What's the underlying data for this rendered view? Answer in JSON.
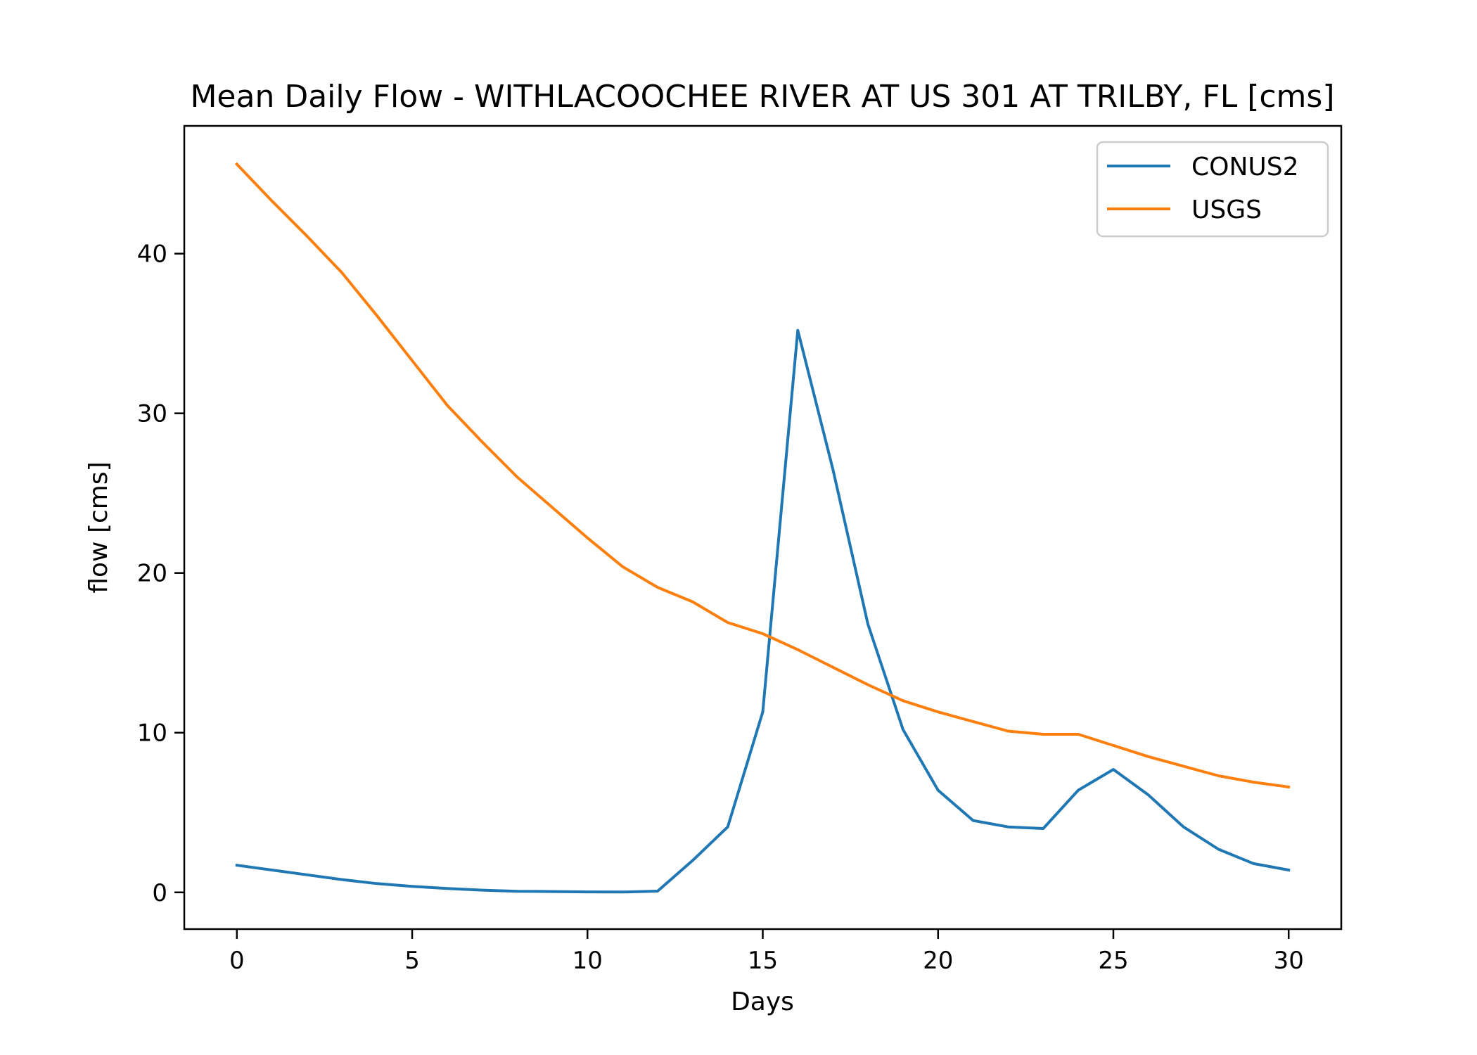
{
  "chart_data": {
    "type": "line",
    "title": "Mean Daily Flow - WITHLACOOCHEE RIVER AT US 301 AT TRILBY, FL [cms]",
    "xlabel": "Days",
    "ylabel": "flow [cms]",
    "xlim": [
      -1.5,
      31.5
    ],
    "ylim": [
      -2.3,
      48.0
    ],
    "xticks": [
      0,
      5,
      10,
      15,
      20,
      25,
      30
    ],
    "xtick_labels": [
      "0",
      "5",
      "10",
      "15",
      "20",
      "25",
      "30"
    ],
    "yticks": [
      0,
      10,
      20,
      30,
      40
    ],
    "ytick_labels": [
      "0",
      "10",
      "20",
      "30",
      "40"
    ],
    "grid": false,
    "legend_position": "top-right",
    "x": [
      0,
      1,
      2,
      3,
      4,
      5,
      6,
      7,
      8,
      9,
      10,
      11,
      12,
      13,
      14,
      15,
      16,
      17,
      18,
      19,
      20,
      21,
      22,
      23,
      24,
      25,
      26,
      27,
      28,
      29,
      30
    ],
    "series": [
      {
        "name": "CONUS2",
        "color": "#1f77b4",
        "values": [
          1.7,
          1.4,
          1.1,
          0.8,
          0.55,
          0.38,
          0.24,
          0.14,
          0.07,
          0.05,
          0.03,
          0.02,
          0.08,
          2.0,
          4.1,
          11.3,
          35.2,
          26.5,
          16.8,
          10.2,
          6.4,
          4.5,
          4.1,
          4.0,
          6.4,
          7.7,
          6.1,
          4.1,
          2.7,
          1.8,
          1.4
        ]
      },
      {
        "name": "USGS",
        "color": "#ff7f0e",
        "values": [
          45.6,
          43.3,
          41.1,
          38.8,
          36.1,
          33.3,
          30.5,
          28.2,
          26.0,
          24.1,
          22.2,
          20.4,
          19.1,
          18.2,
          16.9,
          16.2,
          15.2,
          14.1,
          13.0,
          12.0,
          11.3,
          10.7,
          10.1,
          9.9,
          9.9,
          9.2,
          8.5,
          7.9,
          7.3,
          6.9,
          6.6
        ]
      }
    ]
  }
}
